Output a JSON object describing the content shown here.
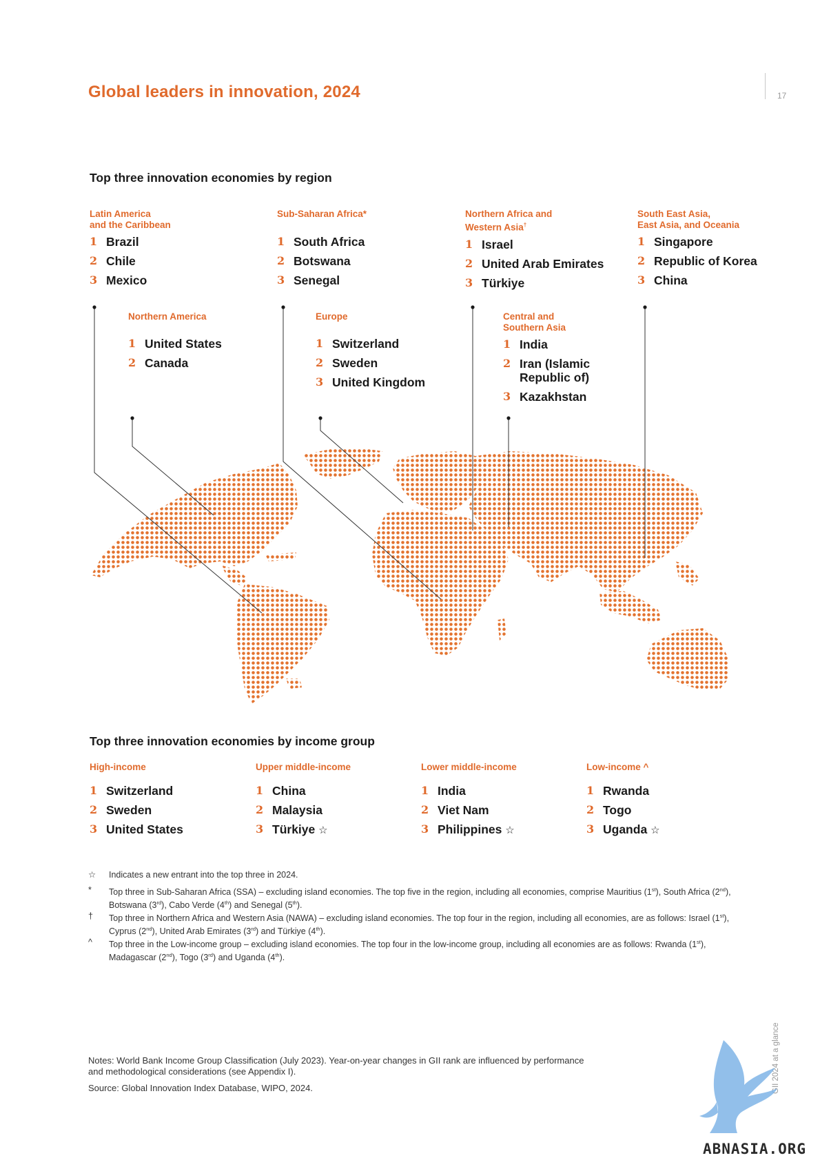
{
  "page": {
    "title": "Global leaders in innovation, 2024",
    "page_number": "17",
    "side_text": "GII 2024 at a glance",
    "watermark": "ABNASIA.ORG"
  },
  "by_region": {
    "heading": "Top three innovation economies by region",
    "regions": [
      {
        "label_l1": "Latin America",
        "label_l2": "and the Caribbean",
        "items": [
          "Brazil",
          "Chile",
          "Mexico"
        ]
      },
      {
        "label_l1": "Sub-Saharan Africa*",
        "label_l2": "",
        "items": [
          "South Africa",
          "Botswana",
          "Senegal"
        ]
      },
      {
        "label_l1": "Northern Africa and",
        "label_l2": "Western Asia",
        "label_sup": "†",
        "items": [
          "Israel",
          "United Arab Emirates",
          "Türkiye"
        ]
      },
      {
        "label_l1": "South East Asia,",
        "label_l2": "East Asia, and Oceania",
        "items": [
          "Singapore",
          "Republic of Korea",
          "China"
        ]
      },
      {
        "label_l1": "Northern America",
        "label_l2": "",
        "items": [
          "United States",
          "Canada"
        ]
      },
      {
        "label_l1": "Europe",
        "label_l2": "",
        "items": [
          "Switzerland",
          "Sweden",
          "United Kingdom"
        ]
      },
      {
        "label_l1": "Central and",
        "label_l2": "Southern Asia",
        "items": [
          "India",
          "Iran (Islamic Republic of)",
          "Kazakhstan"
        ]
      }
    ]
  },
  "by_income": {
    "heading": "Top three innovation economies by income group",
    "groups": [
      {
        "label": "High-income",
        "items": [
          "Switzerland",
          "Sweden",
          "United States"
        ],
        "new": [
          false,
          false,
          false
        ]
      },
      {
        "label": "Upper middle-income",
        "items": [
          "China",
          "Malaysia",
          "Türkiye"
        ],
        "new": [
          false,
          false,
          true
        ]
      },
      {
        "label": "Lower middle-income",
        "items": [
          "India",
          "Viet Nam",
          "Philippines"
        ],
        "new": [
          false,
          false,
          true
        ]
      },
      {
        "label": "Low-income ^",
        "items": [
          "Rwanda",
          "Togo",
          "Uganda"
        ],
        "new": [
          false,
          false,
          true
        ]
      }
    ],
    "star_symbol": "☆"
  },
  "footnotes": [
    {
      "symbol": "☆",
      "text": "Indicates a new entrant into the top three in 2024."
    },
    {
      "symbol": "*",
      "text": "Top three in Sub-Saharan Africa (SSA) – excluding island economies. The top five in the region, including all economies, comprise Mauritius (1st), South Africa (2nd), Botswana (3rd), Cabo Verde (4th) and Senegal (5th)."
    },
    {
      "symbol": "†",
      "text": "Top three in Northern Africa and Western Asia (NAWA) – excluding island economies. The top four in the region, including all economies, are as follows: Israel (1st), Cyprus (2nd), United Arab Emirates (3rd) and Türkiye (4th)."
    },
    {
      "symbol": "^",
      "text": "Top three in the Low-income group – excluding island economies. The top four in the low-income group, including all economies are as follows: Rwanda (1st), Madagascar (2nd), Togo (3rd) and Uganda (4th)."
    }
  ],
  "notes": "Notes: World Bank Income Group Classification (July 2023). Year-on-year changes in GII rank are influenced by performance and methodological considerations (see Appendix I).",
  "source": "Source: Global Innovation Index Database, WIPO, 2024.",
  "colors": {
    "accent": "#e06a2c",
    "map_dot": "#e3732f",
    "leader": "#333333",
    "watermark_bird": "#7fb4e6"
  }
}
